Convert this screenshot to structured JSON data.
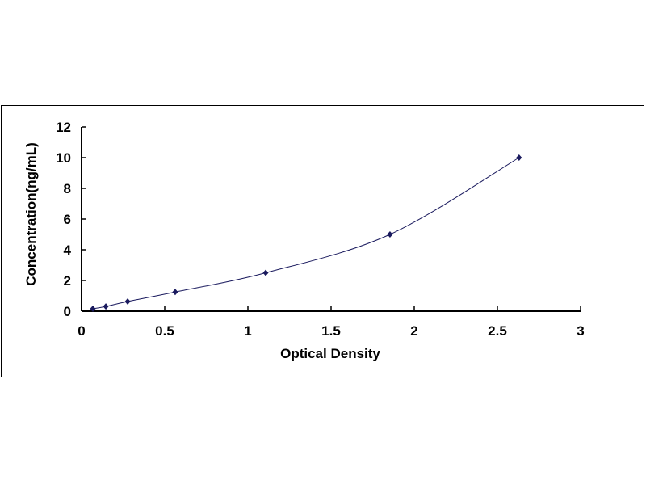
{
  "chart_data": {
    "type": "scatter",
    "title": "",
    "xlabel": "Optical Density",
    "ylabel": "Concentration(ng/mL)",
    "xlim": [
      0,
      3
    ],
    "ylim": [
      0,
      12
    ],
    "xticks": [
      "0",
      "0.5",
      "1",
      "1.5",
      "2",
      "2.5",
      "3"
    ],
    "yticks": [
      "0",
      "2",
      "4",
      "6",
      "8",
      "10",
      "12"
    ],
    "grid": false,
    "legend": "none",
    "marker_color": "#1a1a5e",
    "line_color": "#1a1a5e",
    "trendline": "smooth curve",
    "x": [
      0.068,
      0.146,
      0.277,
      0.563,
      1.107,
      1.854,
      2.63
    ],
    "y": [
      0.16,
      0.31,
      0.63,
      1.25,
      2.5,
      5,
      10
    ]
  }
}
